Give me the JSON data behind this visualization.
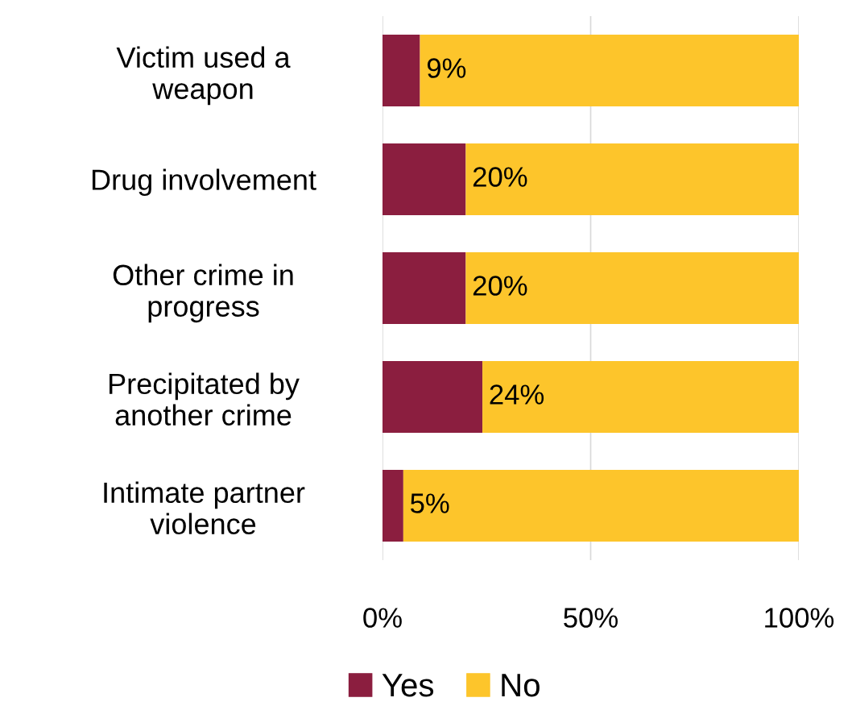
{
  "chart_data": {
    "type": "bar",
    "orientation": "horizontal",
    "stacked": true,
    "categories": [
      "Victim used a\nweapon",
      "Drug involvement",
      "Other crime in\nprogress",
      "Precipitated by\nanother crime",
      "Intimate partner\nviolence"
    ],
    "series": [
      {
        "name": "Yes",
        "color": "#8b1e3f",
        "values": [
          9,
          20,
          20,
          24,
          5
        ],
        "value_labels": [
          "9%",
          "20%",
          "20%",
          "24%",
          "5%"
        ]
      },
      {
        "name": "No",
        "color": "#fdc52b",
        "values": [
          91,
          80,
          80,
          76,
          95
        ]
      }
    ],
    "xlim": [
      0,
      100
    ],
    "xticks": [
      {
        "value": 0,
        "label": "0%"
      },
      {
        "value": 50,
        "label": "50%"
      },
      {
        "value": 100,
        "label": "100%"
      }
    ],
    "grid": "x",
    "legend": "bottom"
  }
}
